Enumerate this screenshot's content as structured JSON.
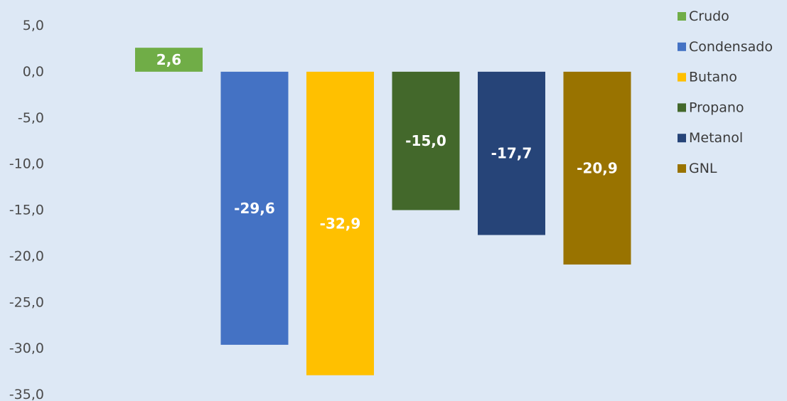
{
  "chart_data": {
    "type": "bar",
    "title": "",
    "xlabel": "",
    "ylabel": "",
    "ylim": [
      -35,
      5
    ],
    "yticks": [
      "5,0",
      "0,0",
      "-5,0",
      "-10,0",
      "-15,0",
      "-20,0",
      "-25,0",
      "-30,0",
      "-35,0"
    ],
    "ytick_values": [
      5,
      0,
      -5,
      -10,
      -15,
      -20,
      -25,
      -30,
      -35
    ],
    "grid": false,
    "legend_position": "top-right",
    "series": [
      {
        "name": "Crudo",
        "value": 2.6,
        "label": "2,6",
        "color": "#70ad47"
      },
      {
        "name": "Condensado",
        "value": -29.6,
        "label": "-29,6",
        "color": "#4472c4"
      },
      {
        "name": "Butano",
        "value": -32.9,
        "label": "-32,9",
        "color": "#ffc000"
      },
      {
        "name": "Propano",
        "value": -15.0,
        "label": "-15,0",
        "color": "#43682b"
      },
      {
        "name": "Metanol",
        "value": -17.7,
        "label": "-17,7",
        "color": "#264478"
      },
      {
        "name": "GNL",
        "value": -20.9,
        "label": "-20,9",
        "color": "#997300"
      }
    ]
  }
}
